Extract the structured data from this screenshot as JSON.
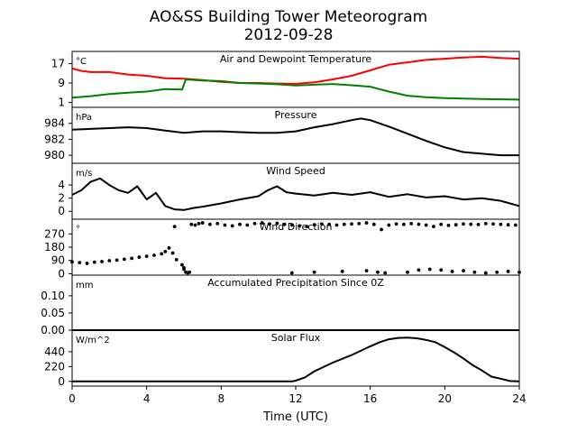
{
  "figure": {
    "title_line1": "AO&SS Building Tower Meteorogram",
    "title_line2": "2012-09-28",
    "xlabel": "Time (UTC)",
    "xticks": [
      0,
      4,
      8,
      12,
      16,
      20,
      24
    ],
    "xlim": [
      0,
      24
    ]
  },
  "chart_data": [
    {
      "type": "line",
      "title": "Air and Dewpoint Temperature",
      "unit": "°C",
      "ylim": [
        -1,
        22
      ],
      "yticks": [
        1,
        9,
        17
      ],
      "series": [
        {
          "color": "#ff0000",
          "x": [
            0,
            0.5,
            1,
            2,
            3,
            4,
            5,
            6,
            7,
            8,
            9,
            10,
            11,
            12,
            13,
            14,
            15,
            16,
            17,
            18,
            19,
            20,
            21,
            22,
            23,
            24
          ],
          "y": [
            15,
            14,
            13.5,
            13.5,
            12.5,
            12,
            11,
            10.8,
            10.2,
            9.5,
            9,
            9,
            8.8,
            8.7,
            9.3,
            10.5,
            12,
            14.2,
            16.5,
            17.5,
            18.5,
            19,
            19.5,
            19.8,
            19.3,
            19
          ]
        },
        {
          "color": "#008000",
          "x": [
            0,
            1,
            2,
            3,
            4,
            5,
            5.9,
            6.1,
            7,
            8,
            9,
            10,
            11,
            12,
            13,
            14,
            15,
            16,
            16.5,
            17,
            18,
            19,
            20,
            21,
            22,
            23,
            24
          ],
          "y": [
            3,
            3.6,
            4.5,
            5,
            5.5,
            6.5,
            6.3,
            10.5,
            10,
            9.8,
            9,
            8.8,
            8.5,
            8,
            8.3,
            8.6,
            8.1,
            7.5,
            6.5,
            5.5,
            3.8,
            3.2,
            2.8,
            2.6,
            2.4,
            2.3,
            2.2
          ]
        }
      ]
    },
    {
      "type": "line",
      "title": "Pressure",
      "unit": "hPa",
      "ylim": [
        979,
        986
      ],
      "yticks": [
        980,
        982,
        984
      ],
      "series": [
        {
          "color": "#000000",
          "x": [
            0,
            1,
            2,
            3,
            4,
            5,
            6,
            7,
            8,
            9,
            10,
            11,
            12,
            13,
            14,
            15,
            15.5,
            16,
            17,
            18,
            19,
            20,
            21,
            22,
            23,
            24
          ],
          "y": [
            983.2,
            983.3,
            983.4,
            983.5,
            983.4,
            983.1,
            982.8,
            983.0,
            983.0,
            982.9,
            982.8,
            982.8,
            983.0,
            983.5,
            983.9,
            984.4,
            984.6,
            984.4,
            983.6,
            982.7,
            981.8,
            981.0,
            980.4,
            980.2,
            980.0,
            980.0
          ]
        }
      ]
    },
    {
      "type": "line",
      "title": "Wind Speed",
      "unit": "m/s",
      "ylim": [
        -1.2,
        7.3
      ],
      "yticks": [
        0,
        2,
        4
      ],
      "series": [
        {
          "color": "#000000",
          "x": [
            0,
            0.5,
            1,
            1.5,
            2,
            2.5,
            3,
            3.5,
            4,
            4.5,
            5,
            5.5,
            6,
            6.5,
            7,
            8,
            9,
            10,
            10.5,
            11,
            11.5,
            12,
            13,
            14,
            15,
            16,
            17,
            18,
            19,
            20,
            21,
            22,
            23,
            24
          ],
          "y": [
            2.5,
            3.2,
            4.5,
            5.0,
            4.0,
            3.2,
            2.8,
            3.8,
            1.8,
            2.8,
            0.8,
            0.3,
            0.2,
            0.5,
            0.7,
            1.2,
            1.8,
            2.3,
            3.2,
            3.8,
            2.9,
            2.7,
            2.4,
            2.8,
            2.5,
            2.9,
            2.2,
            2.6,
            2.1,
            2.3,
            1.8,
            2.0,
            1.6,
            0.8
          ]
        }
      ]
    },
    {
      "type": "scatter",
      "title": "Wind Direction",
      "unit": "°",
      "ylim": [
        -10,
        370
      ],
      "yticks": [
        0,
        90,
        180,
        270
      ],
      "series": [
        {
          "color": "#000000",
          "x": [
            0,
            0.4,
            0.8,
            1.2,
            1.6,
            2,
            2.4,
            2.8,
            3.2,
            3.6,
            4,
            4.4,
            4.8,
            5.0,
            5.2,
            5.4,
            5.6,
            5.9,
            6.0,
            6.1,
            6.2,
            6.4,
            6.6,
            6.8,
            7.0,
            7.4,
            7.8,
            8.2,
            8.6,
            9,
            9.4,
            9.8,
            10.2,
            10.6,
            11,
            11.4,
            11.8,
            12.2,
            12.6,
            13,
            13.4,
            13.8,
            14.2,
            14.6,
            15,
            15.4,
            15.8,
            16.2,
            16.6,
            17,
            17.4,
            17.8,
            18.2,
            18.6,
            19,
            19.4,
            19.8,
            20.2,
            20.6,
            21,
            21.4,
            21.8,
            22.2,
            22.6,
            23,
            23.4,
            23.8,
            5.5,
            6.0,
            6.3,
            13.0,
            14.5,
            15.8,
            16.4,
            16.8,
            18.0,
            18.6,
            19.2,
            19.8,
            20.4,
            21.0,
            21.6,
            22.2,
            22.8,
            23.4,
            24,
            11.8
          ],
          "y": [
            80,
            75,
            70,
            78,
            82,
            88,
            92,
            98,
            104,
            112,
            118,
            125,
            135,
            150,
            175,
            140,
            95,
            60,
            30,
            10,
            5,
            335,
            330,
            340,
            345,
            335,
            340,
            330,
            325,
            335,
            330,
            340,
            345,
            338,
            342,
            335,
            330,
            325,
            320,
            332,
            338,
            335,
            330,
            335,
            338,
            340,
            345,
            335,
            300,
            330,
            338,
            335,
            340,
            336,
            330,
            320,
            335,
            328,
            332,
            338,
            336,
            334,
            340,
            338,
            335,
            332,
            330,
            320,
            40,
            10,
            10,
            15,
            20,
            10,
            5,
            10,
            25,
            30,
            25,
            15,
            20,
            10,
            5,
            10,
            15,
            10,
            5
          ]
        }
      ]
    },
    {
      "type": "line",
      "title": "Accumulated Precipitation Since 0Z",
      "unit": "mm",
      "ylim": [
        0,
        0.16
      ],
      "yticks": [
        0.0,
        0.05,
        0.1
      ],
      "ytick_labels": [
        "0.00",
        "0.05",
        "0.10"
      ],
      "series": [
        {
          "color": "#000000",
          "x": [
            0,
            24
          ],
          "y": [
            0,
            0
          ]
        }
      ]
    },
    {
      "type": "line",
      "title": "Solar Flux",
      "unit": "W/m^2",
      "ylim": [
        -70,
        760
      ],
      "yticks": [
        0,
        220,
        440
      ],
      "series": [
        {
          "color": "#000000",
          "x": [
            0,
            11.8,
            12,
            12.5,
            13,
            14,
            15,
            16,
            16.5,
            17,
            17.5,
            18,
            18.5,
            19,
            19.5,
            20,
            20.5,
            21,
            21.5,
            22,
            22.5,
            23,
            23.5,
            24
          ],
          "y": [
            0,
            0,
            10,
            60,
            150,
            280,
            390,
            520,
            580,
            625,
            645,
            650,
            640,
            615,
            580,
            510,
            430,
            340,
            240,
            160,
            70,
            40,
            5,
            0
          ]
        }
      ]
    }
  ]
}
